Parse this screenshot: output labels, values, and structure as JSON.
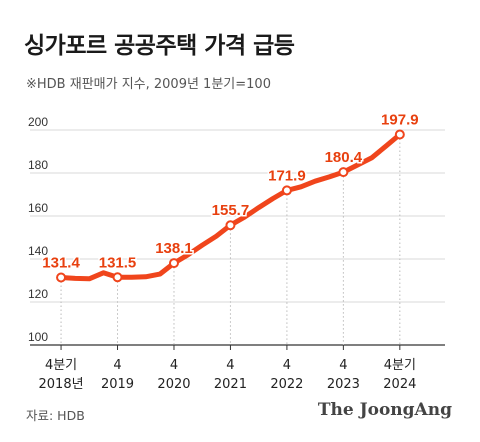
{
  "header": {
    "title": "싱가포르 공공주택 가격 급등",
    "subtitle": "※HDB 재판매가 지수, 2009년 1분기=100"
  },
  "footer": {
    "source": "자료: HDB",
    "brand": "The JoongAng"
  },
  "colors": {
    "line": "#f0451c",
    "label": "#e8400f",
    "grid": "#d9d9d9",
    "axis": "#333333"
  },
  "chart_data": {
    "type": "line",
    "title": "싱가포르 공공주택 가격 급등",
    "subtitle": "※HDB 재판매가 지수, 2009년 1분기=100",
    "xlabel": "",
    "ylabel": "",
    "ylim": [
      100,
      200
    ],
    "yticks": [
      100,
      120,
      140,
      160,
      180,
      200
    ],
    "grid": true,
    "x_ticks": [
      {
        "quarter": "4분기",
        "year": "2018년",
        "x": 2018.75
      },
      {
        "quarter": "4",
        "year": "2019",
        "x": 2019.75
      },
      {
        "quarter": "4",
        "year": "2020",
        "x": 2020.75
      },
      {
        "quarter": "4",
        "year": "2021",
        "x": 2021.75
      },
      {
        "quarter": "4",
        "year": "2022",
        "x": 2022.75
      },
      {
        "quarter": "4",
        "year": "2023",
        "x": 2023.75
      },
      {
        "quarter": "4분기",
        "year": "2024",
        "x": 2024.75
      }
    ],
    "series": [
      {
        "x": [
          2018.75,
          2019.0,
          2019.25,
          2019.5,
          2019.75,
          2020.0,
          2020.25,
          2020.5,
          2020.75,
          2021.0,
          2021.25,
          2021.5,
          2021.75,
          2022.0,
          2022.25,
          2022.5,
          2022.75,
          2023.0,
          2023.25,
          2023.5,
          2023.75,
          2024.0,
          2024.25,
          2024.5,
          2024.75
        ],
        "values": [
          131.4,
          131.0,
          130.8,
          133.6,
          131.5,
          131.5,
          131.7,
          133.0,
          138.1,
          142.0,
          146.4,
          150.6,
          155.7,
          159.5,
          163.9,
          168.1,
          171.9,
          173.6,
          176.2,
          178.2,
          180.4,
          183.7,
          187.0,
          192.4,
          197.9
        ]
      }
    ],
    "data_labels": [
      {
        "x": 2018.75,
        "value": "131.4",
        "text": "131.4",
        "pos": "above",
        "marker": true
      },
      {
        "x": 2019.75,
        "value": "131.5",
        "text": "131.5",
        "pos": "above",
        "marker": true
      },
      {
        "x": 2020.75,
        "value": "138.1",
        "text": "138.1",
        "pos": "above",
        "marker": true
      },
      {
        "x": 2021.75,
        "value": "155.7",
        "text": "155.7",
        "pos": "above",
        "marker": true
      },
      {
        "x": 2022.75,
        "value": "171.9",
        "text": "171.9",
        "pos": "above",
        "marker": true
      },
      {
        "x": 2023.75,
        "value": "180.4",
        "text": "180.4",
        "pos": "above",
        "marker": true
      },
      {
        "x": 2024.75,
        "value": "197.9",
        "text": "197.9",
        "pos": "above",
        "marker": true
      }
    ]
  }
}
